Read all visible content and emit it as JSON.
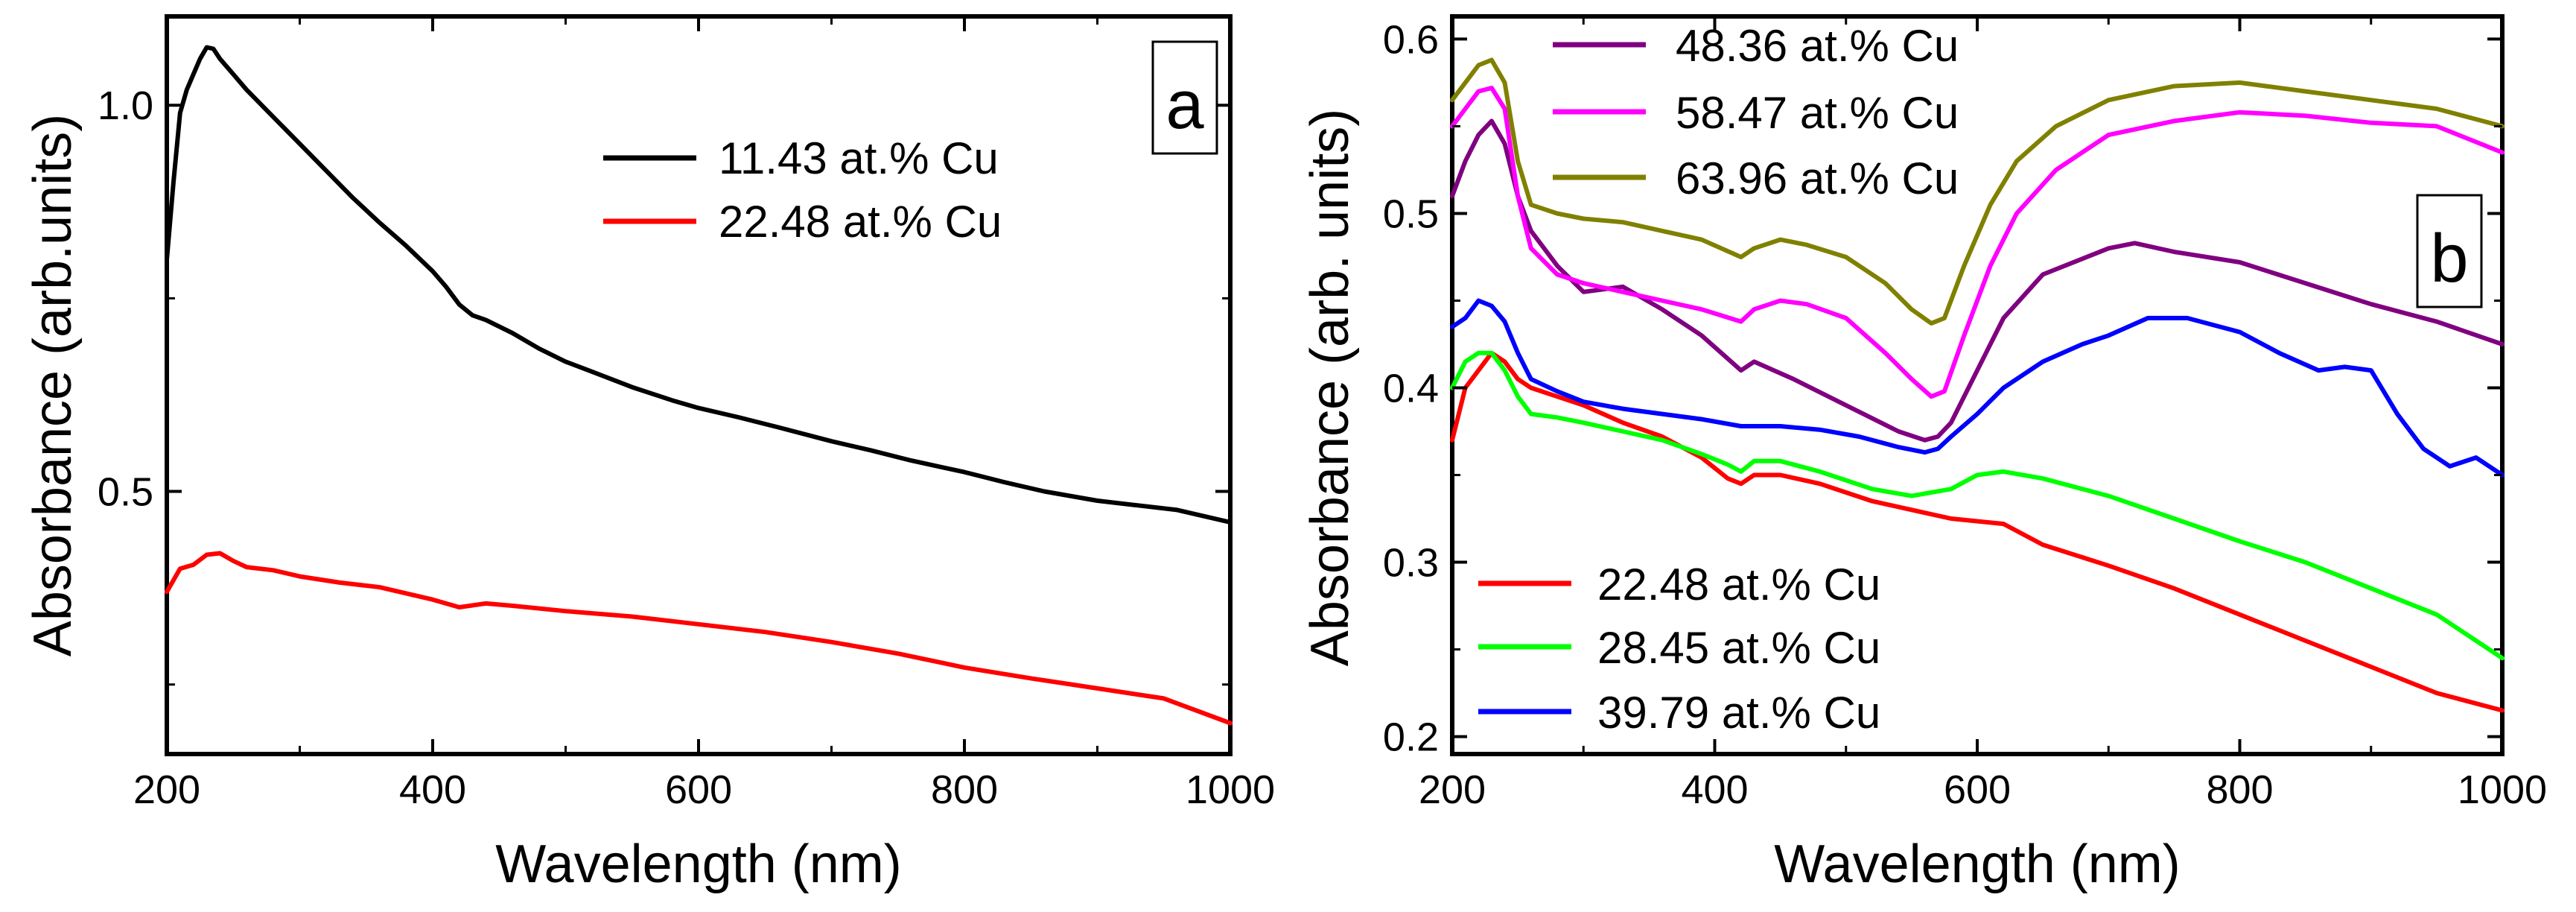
{
  "chart_data": [
    {
      "type": "line",
      "panel_label": "a",
      "xlabel": "Wavelength (nm)",
      "ylabel": "Absorbance (arb.units)",
      "xlim": [
        200,
        1000
      ],
      "ylim": [
        0.16,
        1.115
      ],
      "x_ticks": [
        200,
        400,
        600,
        800,
        1000
      ],
      "y_ticks": [
        0.5,
        1.0
      ],
      "y_tick_labels": [
        "0.5",
        "1.0"
      ],
      "legend_position": "top-right",
      "series": [
        {
          "name": "11.43 at.% Cu",
          "color": "#000000",
          "x": [
            200,
            205,
            210,
            215,
            220,
            225,
            230,
            235,
            240,
            250,
            260,
            280,
            300,
            320,
            340,
            360,
            380,
            400,
            410,
            420,
            430,
            440,
            460,
            480,
            500,
            520,
            550,
            580,
            600,
            630,
            660,
            700,
            730,
            760,
            800,
            830,
            860,
            900,
            930,
            960,
            1000
          ],
          "y": [
            0.8,
            0.9,
            0.99,
            1.02,
            1.04,
            1.06,
            1.075,
            1.073,
            1.06,
            1.04,
            1.02,
            0.985,
            0.95,
            0.915,
            0.88,
            0.848,
            0.818,
            0.785,
            0.765,
            0.742,
            0.728,
            0.722,
            0.705,
            0.685,
            0.668,
            0.655,
            0.635,
            0.618,
            0.608,
            0.596,
            0.583,
            0.565,
            0.553,
            0.54,
            0.525,
            0.512,
            0.5,
            0.488,
            0.482,
            0.476,
            0.46
          ]
        },
        {
          "name": "22.48 at.% Cu",
          "color": "#ff0000",
          "x": [
            200,
            210,
            220,
            230,
            240,
            250,
            260,
            280,
            300,
            330,
            360,
            400,
            420,
            440,
            460,
            500,
            550,
            600,
            650,
            700,
            750,
            800,
            850,
            900,
            950,
            1000
          ],
          "y": [
            0.37,
            0.4,
            0.405,
            0.418,
            0.42,
            0.41,
            0.402,
            0.398,
            0.39,
            0.382,
            0.376,
            0.36,
            0.35,
            0.355,
            0.352,
            0.345,
            0.338,
            0.328,
            0.318,
            0.305,
            0.29,
            0.272,
            0.258,
            0.245,
            0.232,
            0.2
          ]
        }
      ]
    },
    {
      "type": "line",
      "panel_label": "b",
      "xlabel": "Wavelength (nm)",
      "ylabel": "Absorbance (arb. units)",
      "xlim": [
        200,
        1000
      ],
      "ylim": [
        0.19,
        0.613
      ],
      "x_ticks": [
        200,
        400,
        600,
        800,
        1000
      ],
      "y_ticks": [
        0.2,
        0.3,
        0.4,
        0.5,
        0.6
      ],
      "y_tick_labels": [
        "0.2",
        "0.3",
        "0.4",
        "0.5",
        "0.6"
      ],
      "legend_position": "top-left and bottom-left",
      "series": [
        {
          "name": "48.36 at.% Cu",
          "color": "#800080",
          "x": [
            200,
            210,
            220,
            230,
            240,
            250,
            260,
            280,
            300,
            330,
            360,
            390,
            420,
            430,
            460,
            500,
            540,
            560,
            570,
            580,
            600,
            620,
            650,
            700,
            720,
            750,
            800,
            850,
            900,
            950,
            1000
          ],
          "y": [
            0.51,
            0.53,
            0.545,
            0.553,
            0.54,
            0.51,
            0.49,
            0.47,
            0.455,
            0.458,
            0.445,
            0.43,
            0.41,
            0.415,
            0.405,
            0.39,
            0.375,
            0.37,
            0.372,
            0.38,
            0.41,
            0.44,
            0.465,
            0.48,
            0.483,
            0.478,
            0.472,
            0.46,
            0.448,
            0.438,
            0.425
          ]
        },
        {
          "name": "58.47 at.% Cu",
          "color": "#ff00ff",
          "x": [
            200,
            210,
            220,
            230,
            240,
            250,
            260,
            280,
            300,
            330,
            360,
            390,
            420,
            430,
            450,
            470,
            500,
            530,
            550,
            565,
            575,
            590,
            610,
            630,
            660,
            700,
            750,
            800,
            850,
            900,
            950,
            1000
          ],
          "y": [
            0.55,
            0.56,
            0.57,
            0.572,
            0.56,
            0.51,
            0.48,
            0.465,
            0.46,
            0.455,
            0.45,
            0.445,
            0.438,
            0.445,
            0.45,
            0.448,
            0.44,
            0.42,
            0.405,
            0.395,
            0.398,
            0.43,
            0.47,
            0.5,
            0.525,
            0.545,
            0.553,
            0.558,
            0.556,
            0.552,
            0.55,
            0.535
          ]
        },
        {
          "name": "63.96 at.% Cu",
          "color": "#808000",
          "x": [
            200,
            210,
            220,
            230,
            240,
            250,
            260,
            280,
            300,
            330,
            360,
            390,
            420,
            430,
            450,
            470,
            500,
            530,
            550,
            565,
            575,
            590,
            610,
            630,
            660,
            700,
            750,
            800,
            850,
            900,
            950,
            1000
          ],
          "y": [
            0.565,
            0.575,
            0.585,
            0.588,
            0.575,
            0.53,
            0.505,
            0.5,
            0.497,
            0.495,
            0.49,
            0.485,
            0.475,
            0.48,
            0.485,
            0.482,
            0.475,
            0.46,
            0.445,
            0.437,
            0.44,
            0.47,
            0.505,
            0.53,
            0.55,
            0.565,
            0.573,
            0.575,
            0.57,
            0.565,
            0.56,
            0.55
          ]
        },
        {
          "name": "22.48 at.% Cu",
          "color": "#ff0000",
          "x": [
            200,
            210,
            220,
            230,
            240,
            250,
            260,
            280,
            300,
            330,
            360,
            390,
            410,
            420,
            430,
            450,
            480,
            520,
            550,
            580,
            620,
            650,
            700,
            750,
            800,
            850,
            900,
            950,
            1000
          ],
          "y": [
            0.37,
            0.4,
            0.41,
            0.42,
            0.415,
            0.405,
            0.4,
            0.395,
            0.39,
            0.38,
            0.372,
            0.36,
            0.348,
            0.345,
            0.35,
            0.35,
            0.345,
            0.335,
            0.33,
            0.325,
            0.322,
            0.31,
            0.298,
            0.285,
            0.27,
            0.255,
            0.24,
            0.225,
            0.215
          ]
        },
        {
          "name": "28.45 at.% Cu",
          "color": "#00ff00",
          "x": [
            200,
            210,
            220,
            230,
            240,
            250,
            260,
            280,
            300,
            330,
            360,
            390,
            410,
            420,
            430,
            450,
            480,
            520,
            550,
            580,
            600,
            620,
            650,
            700,
            750,
            800,
            850,
            900,
            950,
            1000
          ],
          "y": [
            0.4,
            0.415,
            0.42,
            0.42,
            0.41,
            0.395,
            0.385,
            0.383,
            0.38,
            0.375,
            0.37,
            0.362,
            0.356,
            0.352,
            0.358,
            0.358,
            0.352,
            0.342,
            0.338,
            0.342,
            0.35,
            0.352,
            0.348,
            0.338,
            0.325,
            0.312,
            0.3,
            0.285,
            0.27,
            0.245
          ]
        },
        {
          "name": "39.79 at.% Cu",
          "color": "#0000ff",
          "x": [
            200,
            210,
            220,
            230,
            240,
            250,
            260,
            280,
            300,
            330,
            360,
            390,
            420,
            450,
            480,
            510,
            540,
            560,
            570,
            580,
            600,
            620,
            650,
            680,
            700,
            730,
            760,
            800,
            830,
            860,
            880,
            900,
            920,
            940,
            960,
            980,
            1000
          ],
          "y": [
            0.435,
            0.44,
            0.45,
            0.447,
            0.438,
            0.42,
            0.405,
            0.398,
            0.392,
            0.388,
            0.385,
            0.382,
            0.378,
            0.378,
            0.376,
            0.372,
            0.366,
            0.363,
            0.365,
            0.372,
            0.385,
            0.4,
            0.415,
            0.425,
            0.43,
            0.44,
            0.44,
            0.432,
            0.42,
            0.41,
            0.412,
            0.41,
            0.385,
            0.365,
            0.355,
            0.36,
            0.35
          ]
        }
      ]
    }
  ],
  "panel_a": {
    "tag": "a",
    "ylabel": "Absorbance (arb.units)",
    "xlabel": "Wavelength (nm)",
    "legend": [
      "11.43 at.% Cu",
      "22.48 at.% Cu"
    ],
    "x_tick_labels": [
      "200",
      "400",
      "600",
      "800",
      "1000"
    ],
    "y_tick_labels": [
      "0.5",
      "1.0"
    ]
  },
  "panel_b": {
    "tag": "b",
    "ylabel": "Absorbance (arb. units)",
    "xlabel": "Wavelength (nm)",
    "legend_top": [
      "48.36 at.% Cu",
      "58.47 at.% Cu",
      "63.96 at.% Cu"
    ],
    "legend_bottom": [
      "22.48 at.% Cu",
      "28.45 at.% Cu",
      "39.79 at.% Cu"
    ],
    "x_tick_labels": [
      "200",
      "400",
      "600",
      "800",
      "1000"
    ],
    "y_tick_labels": [
      "0.2",
      "0.3",
      "0.4",
      "0.5",
      "0.6"
    ]
  }
}
